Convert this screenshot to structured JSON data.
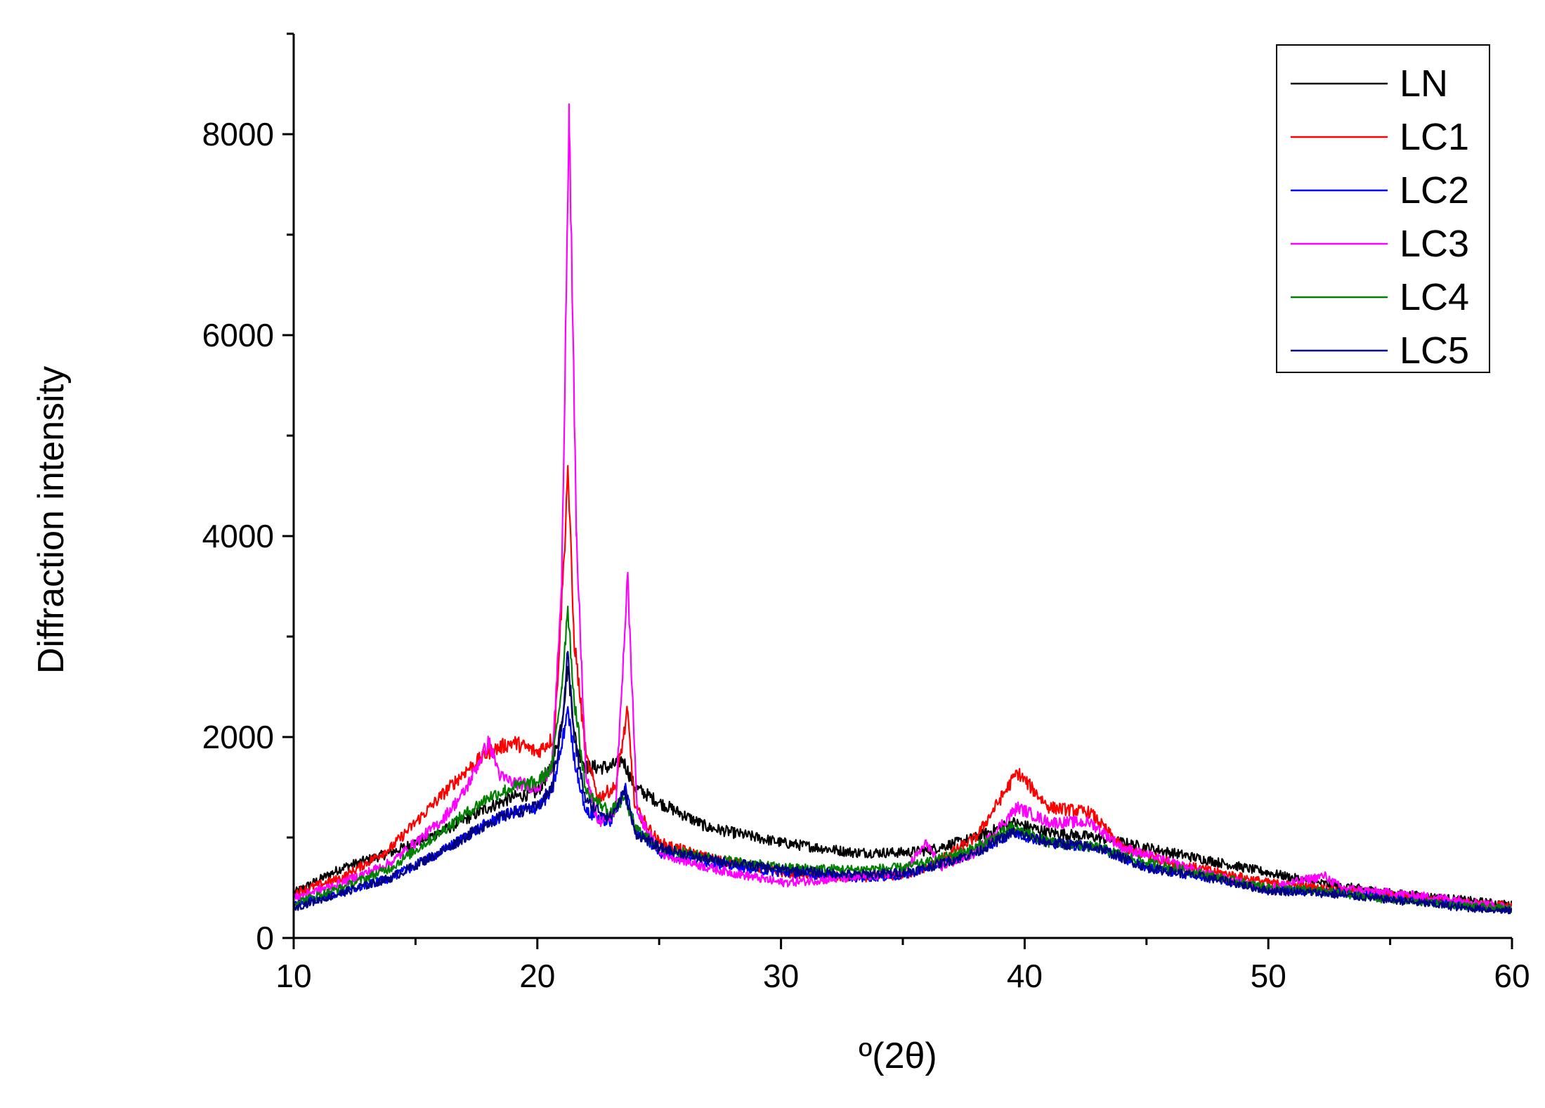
{
  "chart_data": {
    "type": "line",
    "xlabel": "º(2θ)",
    "ylabel": "Diffraction intensity",
    "xlim": [
      10,
      60
    ],
    "ylim": [
      0,
      9000
    ],
    "xticks": [
      10,
      20,
      30,
      40,
      50,
      60
    ],
    "yticks": [
      0,
      2000,
      4000,
      6000,
      8000
    ],
    "grid": false,
    "legend_position": "top-right",
    "series": [
      {
        "name": "LN",
        "color": "#000000",
        "points": [
          [
            10,
            450
          ],
          [
            12,
            700
          ],
          [
            14,
            850
          ],
          [
            16,
            1050
          ],
          [
            18,
            1300
          ],
          [
            19,
            1400
          ],
          [
            20,
            1450
          ],
          [
            20.6,
            1700
          ],
          [
            21.0,
            2150
          ],
          [
            21.25,
            2700
          ],
          [
            21.6,
            1900
          ],
          [
            22.0,
            1700
          ],
          [
            23.0,
            1700
          ],
          [
            23.5,
            1780
          ],
          [
            24.0,
            1500
          ],
          [
            25,
            1350
          ],
          [
            27,
            1100
          ],
          [
            30,
            950
          ],
          [
            33,
            850
          ],
          [
            35,
            850
          ],
          [
            36,
            870
          ],
          [
            38,
            1000
          ],
          [
            39.5,
            1150
          ],
          [
            41,
            1050
          ],
          [
            43,
            1000
          ],
          [
            45,
            900
          ],
          [
            48,
            750
          ],
          [
            50,
            650
          ],
          [
            52,
            550
          ],
          [
            55,
            450
          ],
          [
            58,
            380
          ],
          [
            60,
            330
          ]
        ]
      },
      {
        "name": "LC1",
        "color": "#ff0000",
        "points": [
          [
            10,
            450
          ],
          [
            12,
            600
          ],
          [
            14,
            900
          ],
          [
            16,
            1400
          ],
          [
            17,
            1650
          ],
          [
            18,
            1850
          ],
          [
            19,
            1950
          ],
          [
            20,
            1850
          ],
          [
            20.7,
            2000
          ],
          [
            21.1,
            3800
          ],
          [
            21.25,
            4700
          ],
          [
            21.5,
            3000
          ],
          [
            22.0,
            1800
          ],
          [
            22.5,
            1400
          ],
          [
            23.2,
            1500
          ],
          [
            23.7,
            2250
          ],
          [
            24.0,
            1300
          ],
          [
            25,
            950
          ],
          [
            27,
            800
          ],
          [
            30,
            650
          ],
          [
            33,
            600
          ],
          [
            35,
            620
          ],
          [
            36,
            700
          ],
          [
            38,
            1000
          ],
          [
            39.7,
            1650
          ],
          [
            41,
            1300
          ],
          [
            42.7,
            1250
          ],
          [
            44,
            900
          ],
          [
            46,
            750
          ],
          [
            48,
            650
          ],
          [
            50,
            550
          ],
          [
            52,
            500
          ],
          [
            55,
            430
          ],
          [
            58,
            350
          ],
          [
            60,
            320
          ]
        ]
      },
      {
        "name": "LC2",
        "color": "#0000ff",
        "points": [
          [
            10,
            350
          ],
          [
            12,
            450
          ],
          [
            14,
            600
          ],
          [
            16,
            850
          ],
          [
            18,
            1150
          ],
          [
            19,
            1250
          ],
          [
            20,
            1300
          ],
          [
            20.6,
            1450
          ],
          [
            21.0,
            1900
          ],
          [
            21.25,
            2300
          ],
          [
            21.5,
            1800
          ],
          [
            22.0,
            1250
          ],
          [
            23.0,
            1150
          ],
          [
            23.6,
            1500
          ],
          [
            24.0,
            1100
          ],
          [
            25,
            850
          ],
          [
            27,
            750
          ],
          [
            30,
            650
          ],
          [
            33,
            600
          ],
          [
            35,
            620
          ],
          [
            36,
            700
          ],
          [
            38,
            850
          ],
          [
            39.5,
            1050
          ],
          [
            41,
            950
          ],
          [
            43,
            900
          ],
          [
            45,
            700
          ],
          [
            48,
            580
          ],
          [
            50,
            480
          ],
          [
            53,
            450
          ],
          [
            55,
            400
          ],
          [
            58,
            320
          ],
          [
            60,
            280
          ]
        ]
      },
      {
        "name": "LC3",
        "color": "#ff00ff",
        "points": [
          [
            10,
            400
          ],
          [
            12,
            550
          ],
          [
            14,
            750
          ],
          [
            16,
            1150
          ],
          [
            17,
            1450
          ],
          [
            18,
            1950
          ],
          [
            18.5,
            1600
          ],
          [
            19,
            1550
          ],
          [
            20,
            1500
          ],
          [
            20.6,
            1700
          ],
          [
            21.0,
            3500
          ],
          [
            21.3,
            8300
          ],
          [
            21.6,
            4000
          ],
          [
            22.0,
            1600
          ],
          [
            22.5,
            1150
          ],
          [
            23.2,
            1250
          ],
          [
            23.7,
            3600
          ],
          [
            24.1,
            1250
          ],
          [
            25,
            850
          ],
          [
            27,
            700
          ],
          [
            30,
            550
          ],
          [
            33,
            600
          ],
          [
            35,
            650
          ],
          [
            36,
            950
          ],
          [
            36.5,
            700
          ],
          [
            38,
            850
          ],
          [
            39.7,
            1300
          ],
          [
            41,
            1150
          ],
          [
            42.7,
            1150
          ],
          [
            44,
            900
          ],
          [
            46,
            750
          ],
          [
            48,
            600
          ],
          [
            50,
            500
          ],
          [
            52.3,
            620
          ],
          [
            53,
            500
          ],
          [
            55,
            450
          ],
          [
            58,
            380
          ],
          [
            60,
            300
          ]
        ]
      },
      {
        "name": "LC4",
        "color": "#008000",
        "points": [
          [
            10,
            350
          ],
          [
            12,
            500
          ],
          [
            14,
            700
          ],
          [
            16,
            1050
          ],
          [
            18,
            1400
          ],
          [
            19,
            1500
          ],
          [
            20,
            1550
          ],
          [
            20.6,
            1700
          ],
          [
            21.0,
            2500
          ],
          [
            21.25,
            3300
          ],
          [
            21.5,
            2400
          ],
          [
            22.0,
            1450
          ],
          [
            23.0,
            1250
          ],
          [
            23.6,
            1400
          ],
          [
            24.0,
            1100
          ],
          [
            25,
            900
          ],
          [
            27,
            800
          ],
          [
            30,
            700
          ],
          [
            33,
            680
          ],
          [
            35,
            700
          ],
          [
            36,
            750
          ],
          [
            38,
            900
          ],
          [
            39.5,
            1100
          ],
          [
            41,
            950
          ],
          [
            43,
            900
          ],
          [
            45,
            750
          ],
          [
            48,
            600
          ],
          [
            50,
            500
          ],
          [
            52,
            470
          ],
          [
            55,
            380
          ],
          [
            58,
            320
          ],
          [
            60,
            290
          ]
        ]
      },
      {
        "name": "LC5",
        "color": "#000080",
        "points": [
          [
            10,
            300
          ],
          [
            12,
            450
          ],
          [
            14,
            600
          ],
          [
            16,
            850
          ],
          [
            18,
            1150
          ],
          [
            19,
            1250
          ],
          [
            20,
            1300
          ],
          [
            20.6,
            1500
          ],
          [
            21.0,
            2100
          ],
          [
            21.25,
            2850
          ],
          [
            21.5,
            2000
          ],
          [
            22.0,
            1350
          ],
          [
            23.0,
            1200
          ],
          [
            23.6,
            1450
          ],
          [
            24.0,
            1050
          ],
          [
            25,
            900
          ],
          [
            27,
            780
          ],
          [
            30,
            680
          ],
          [
            33,
            630
          ],
          [
            35,
            650
          ],
          [
            36,
            700
          ],
          [
            38,
            850
          ],
          [
            39.5,
            1050
          ],
          [
            41,
            950
          ],
          [
            43,
            900
          ],
          [
            45,
            700
          ],
          [
            48,
            580
          ],
          [
            50,
            470
          ],
          [
            52,
            450
          ],
          [
            55,
            380
          ],
          [
            58,
            300
          ],
          [
            60,
            270
          ]
        ]
      }
    ]
  }
}
